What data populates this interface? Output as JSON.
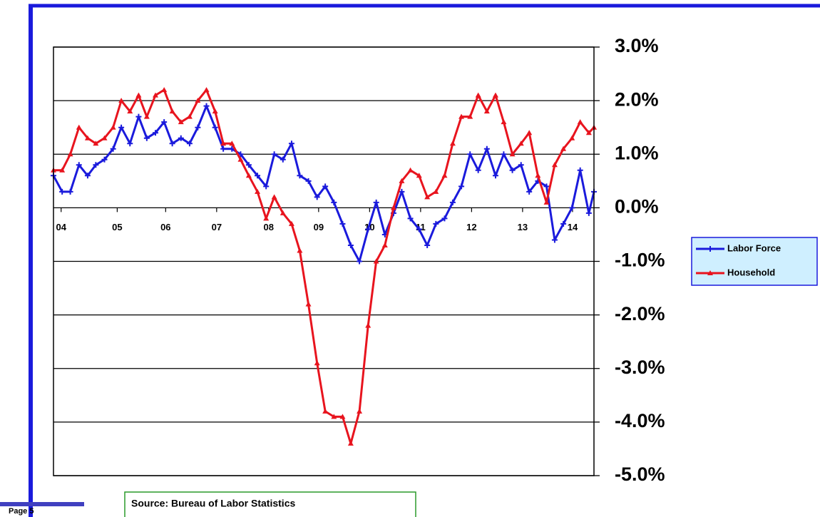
{
  "chart_data": {
    "type": "line",
    "x": [
      2004.0,
      2004.17,
      2004.33,
      2004.5,
      2004.67,
      2004.83,
      2005.0,
      2005.17,
      2005.33,
      2005.5,
      2005.67,
      2005.83,
      2006.0,
      2006.17,
      2006.33,
      2006.5,
      2006.67,
      2006.83,
      2007.0,
      2007.17,
      2007.33,
      2007.5,
      2007.67,
      2007.83,
      2008.0,
      2008.17,
      2008.33,
      2008.5,
      2008.67,
      2008.83,
      2009.0,
      2009.17,
      2009.33,
      2009.5,
      2009.67,
      2009.83,
      2010.0,
      2010.17,
      2010.33,
      2010.5,
      2010.67,
      2010.83,
      2011.0,
      2011.17,
      2011.33,
      2011.5,
      2011.67,
      2011.83,
      2012.0,
      2012.17,
      2012.33,
      2012.5,
      2012.67,
      2012.83,
      2013.0,
      2013.17,
      2013.33,
      2013.5,
      2013.67,
      2013.83,
      2014.0,
      2014.17,
      2014.33,
      2014.5,
      2014.6
    ],
    "series": [
      {
        "name": "Labor Force",
        "color": "#1a1adc",
        "marker": "cross",
        "values": [
          0.6,
          0.3,
          0.3,
          0.8,
          0.6,
          0.8,
          0.9,
          1.1,
          1.5,
          1.2,
          1.7,
          1.3,
          1.4,
          1.6,
          1.2,
          1.3,
          1.2,
          1.5,
          1.9,
          1.5,
          1.1,
          1.1,
          1.0,
          0.8,
          0.6,
          0.4,
          1.0,
          0.9,
          1.2,
          0.6,
          0.5,
          0.2,
          0.4,
          0.1,
          -0.3,
          -0.7,
          -1.0,
          -0.4,
          0.1,
          -0.5,
          -0.1,
          0.3,
          -0.2,
          -0.4,
          -0.7,
          -0.3,
          -0.2,
          0.1,
          0.4,
          1.0,
          0.7,
          1.1,
          0.6,
          1.0,
          0.7,
          0.8,
          0.3,
          0.5,
          0.4,
          -0.6,
          -0.3,
          0.0,
          0.7,
          -0.1,
          0.3
        ]
      },
      {
        "name": "Household",
        "color": "#e8141e",
        "marker": "triangle",
        "values": [
          0.7,
          0.7,
          1.0,
          1.5,
          1.3,
          1.2,
          1.3,
          1.5,
          2.0,
          1.8,
          2.1,
          1.7,
          2.1,
          2.2,
          1.8,
          1.6,
          1.7,
          2.0,
          2.2,
          1.8,
          1.2,
          1.2,
          0.9,
          0.6,
          0.3,
          -0.2,
          0.2,
          -0.1,
          -0.3,
          -0.8,
          -1.8,
          -2.9,
          -3.8,
          -3.9,
          -3.9,
          -4.4,
          -3.8,
          -2.2,
          -1.0,
          -0.7,
          0.0,
          0.5,
          0.7,
          0.6,
          0.2,
          0.3,
          0.6,
          1.2,
          1.7,
          1.7,
          2.1,
          1.8,
          2.1,
          1.6,
          1.0,
          1.2,
          1.4,
          0.6,
          0.1,
          0.8,
          1.1,
          1.3,
          1.6,
          1.4,
          1.5
        ]
      }
    ],
    "xlim": [
      2004.0,
      2014.6
    ],
    "xticks": [
      {
        "value": 2004.15,
        "label": "04"
      },
      {
        "value": 2005.25,
        "label": "05"
      },
      {
        "value": 2006.2,
        "label": "06"
      },
      {
        "value": 2007.2,
        "label": "07"
      },
      {
        "value": 2008.22,
        "label": "08"
      },
      {
        "value": 2009.2,
        "label": "09"
      },
      {
        "value": 2010.2,
        "label": "10"
      },
      {
        "value": 2011.2,
        "label": "11"
      },
      {
        "value": 2012.2,
        "label": "12"
      },
      {
        "value": 2013.2,
        "label": "13"
      },
      {
        "value": 2014.18,
        "label": "14"
      }
    ],
    "ylim": [
      -5,
      3
    ],
    "yticks": [
      {
        "value": 3,
        "label": "3.0%"
      },
      {
        "value": 2,
        "label": "2.0%"
      },
      {
        "value": 1,
        "label": "1.0%"
      },
      {
        "value": 0,
        "label": "0.0%"
      },
      {
        "value": -1,
        "label": "-1.0%"
      },
      {
        "value": -2,
        "label": "-2.0%"
      },
      {
        "value": -3,
        "label": "-3.0%"
      },
      {
        "value": -4,
        "label": "-4.0%"
      },
      {
        "value": -5,
        "label": "-5.0%"
      }
    ],
    "grid": true,
    "legend": "right",
    "source": "Source: Bureau of Labor Statistics",
    "page_label": "Page 5"
  }
}
